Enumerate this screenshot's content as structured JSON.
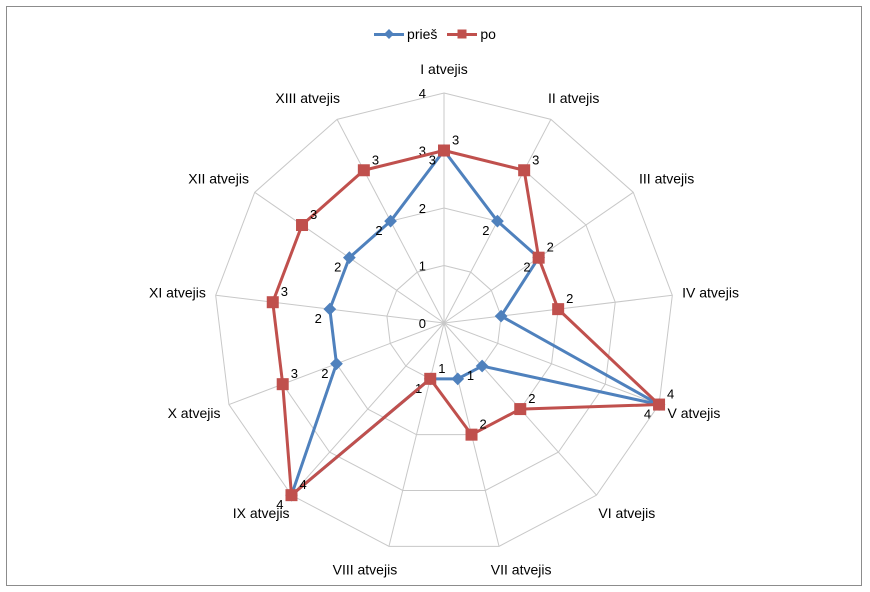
{
  "chart_data": {
    "type": "radar",
    "categories": [
      "I atvejis",
      "II atvejis",
      "III atvejis",
      "IV atvejis",
      "V atvejis",
      "VI atvejis",
      "VII atvejis",
      "VIII atvejis",
      "IX atvejis",
      "X atvejis",
      "XI atvejis",
      "XII atvejis",
      "XIII atvejis"
    ],
    "axis_ticks": [
      "0",
      "1",
      "2",
      "3",
      "4"
    ],
    "rlim": [
      0,
      4
    ],
    "grid": true,
    "legend_position": "top",
    "series": [
      {
        "name": "prieš",
        "color": "#4f81bd",
        "marker": "diamond",
        "values": [
          3,
          2,
          2,
          1,
          4,
          1,
          1,
          1,
          4,
          2,
          2,
          2,
          2
        ],
        "labels": [
          "3",
          "2",
          "2",
          "",
          "4",
          "1",
          "",
          "1",
          "4",
          "2",
          "2",
          "2",
          "2"
        ]
      },
      {
        "name": "po",
        "color": "#c0504d",
        "marker": "square",
        "values": [
          3,
          3,
          2,
          2,
          4,
          2,
          2,
          1,
          4,
          3,
          3,
          3,
          3
        ],
        "labels": [
          "3",
          "3",
          "2",
          "2",
          "4",
          "2",
          "2",
          "1",
          "4",
          "3",
          "3",
          "3",
          "3"
        ]
      }
    ]
  }
}
